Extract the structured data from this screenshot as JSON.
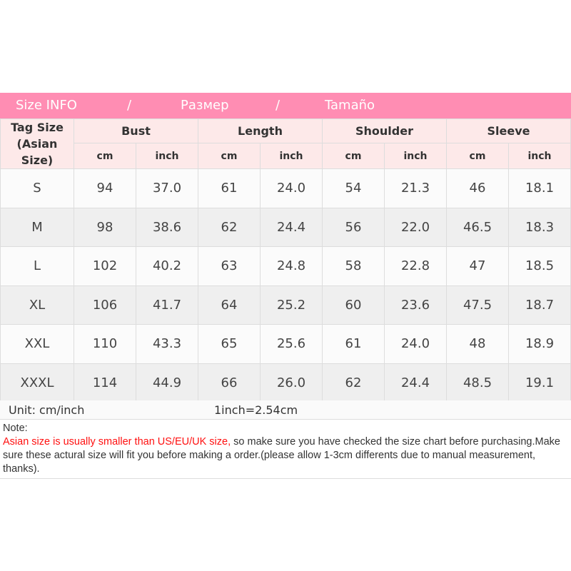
{
  "banner": {
    "title_en": "Size INFO",
    "sep": "/",
    "title_ru": "Размер",
    "title_es": "Tamaño"
  },
  "colors": {
    "banner": "#ff8db3",
    "header": "#fde9e9",
    "warning": "#ff1010"
  },
  "table": {
    "tag_header_1": "Tag Size",
    "tag_header_2": "(Asian Size)",
    "groups": [
      "Bust",
      "Length",
      "Shoulder",
      "Sleeve"
    ],
    "units": [
      "cm",
      "inch"
    ],
    "rows": [
      [
        "S",
        "94",
        "37.0",
        "61",
        "24.0",
        "54",
        "21.3",
        "46",
        "18.1"
      ],
      [
        "M",
        "98",
        "38.6",
        "62",
        "24.4",
        "56",
        "22.0",
        "46.5",
        "18.3"
      ],
      [
        "L",
        "102",
        "40.2",
        "63",
        "24.8",
        "58",
        "22.8",
        "47",
        "18.5"
      ],
      [
        "XL",
        "106",
        "41.7",
        "64",
        "25.2",
        "60",
        "23.6",
        "47.5",
        "18.7"
      ],
      [
        "XXL",
        "110",
        "43.3",
        "65",
        "25.6",
        "61",
        "24.0",
        "48",
        "18.9"
      ],
      [
        "XXXL",
        "114",
        "44.9",
        "66",
        "26.0",
        "62",
        "24.4",
        "48.5",
        "19.1"
      ]
    ]
  },
  "unit": {
    "label": "Unit: cm/inch",
    "conversion": "1inch=2.54cm"
  },
  "note": {
    "title": "Note:",
    "warning": "Asian size is usually smaller than US/EU/UK size,",
    "text": " so make sure you have checked the size chart before purchasing.Make sure these actural size will fit you before making a order.(please allow 1-3cm differents due to manual measurement, thanks)."
  }
}
